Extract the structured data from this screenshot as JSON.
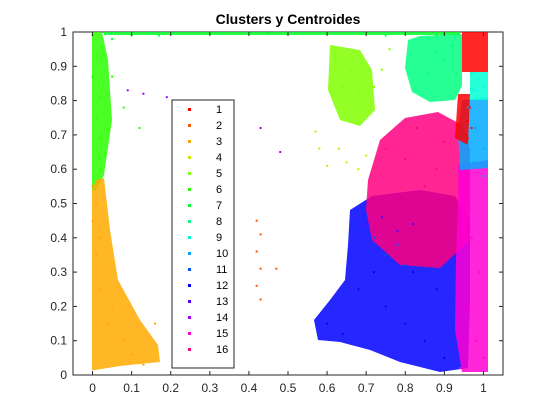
{
  "chart_data": {
    "type": "scatter",
    "title": "Clusters y Centroides",
    "xlabel": "",
    "ylabel": "",
    "xlim": [
      -0.05,
      1.05
    ],
    "ylim": [
      0,
      1
    ],
    "xticks": [
      "0",
      "0.1",
      "0.2",
      "0.3",
      "0.4",
      "0.5",
      "0.6",
      "0.7",
      "0.8",
      "0.9",
      "1"
    ],
    "yticks": [
      "0",
      "0.1",
      "0.2",
      "0.3",
      "0.4",
      "0.5",
      "0.6",
      "0.7",
      "0.8",
      "0.9",
      "1"
    ],
    "legend_position": "inside-left",
    "series": [
      {
        "name": "1",
        "color": "#ff0000",
        "points": [
          [
            0.955,
            0.7
          ],
          [
            0.96,
            0.74
          ],
          [
            0.965,
            0.78
          ],
          [
            0.97,
            0.72
          ],
          [
            0.96,
            0.69
          ]
        ]
      },
      {
        "name": "2",
        "color": "#ff5500",
        "points": [
          [
            0.42,
            0.45
          ],
          [
            0.43,
            0.41
          ],
          [
            0.42,
            0.36
          ],
          [
            0.43,
            0.31
          ],
          [
            0.42,
            0.26
          ],
          [
            0.43,
            0.22
          ],
          [
            0.47,
            0.31
          ]
        ]
      },
      {
        "name": "3",
        "color": "#ffaa00",
        "points": [
          [
            0.0,
            0.55
          ],
          [
            0.01,
            0.5
          ],
          [
            0.0,
            0.45
          ],
          [
            0.02,
            0.4
          ],
          [
            0.01,
            0.35
          ],
          [
            0.03,
            0.3
          ],
          [
            0.02,
            0.25
          ],
          [
            0.05,
            0.2
          ],
          [
            0.04,
            0.15
          ],
          [
            0.08,
            0.1
          ],
          [
            0.1,
            0.06
          ],
          [
            0.13,
            0.03
          ],
          [
            0.16,
            0.15
          ]
        ]
      },
      {
        "name": "4",
        "color": "#d2e600",
        "points": [
          [
            0.57,
            0.71
          ],
          [
            0.58,
            0.66
          ],
          [
            0.6,
            0.61
          ],
          [
            0.63,
            0.66
          ],
          [
            0.65,
            0.62
          ],
          [
            0.68,
            0.6
          ],
          [
            0.7,
            0.64
          ]
        ]
      },
      {
        "name": "5",
        "color": "#80ff00",
        "points": [
          [
            0.62,
            0.93
          ],
          [
            0.66,
            0.89
          ],
          [
            0.64,
            0.84
          ],
          [
            0.68,
            0.82
          ],
          [
            0.7,
            0.79
          ],
          [
            0.72,
            0.84
          ],
          [
            0.74,
            0.89
          ],
          [
            0.76,
            0.95
          ]
        ]
      },
      {
        "name": "6",
        "color": "#2aff00",
        "points": [
          [
            0.0,
            0.99
          ],
          [
            0.01,
            0.93
          ],
          [
            0.0,
            0.87
          ],
          [
            0.02,
            0.81
          ],
          [
            0.01,
            0.75
          ],
          [
            0.02,
            0.69
          ],
          [
            0.03,
            0.64
          ],
          [
            0.05,
            0.87
          ],
          [
            0.08,
            0.78
          ],
          [
            0.12,
            0.72
          ]
        ]
      },
      {
        "name": "7",
        "color": "#00ff2a",
        "points": [
          [
            0.05,
            0.98
          ],
          [
            0.1,
            0.99
          ],
          [
            0.17,
            0.99
          ],
          [
            0.3,
            0.995
          ],
          [
            0.45,
            0.995
          ],
          [
            0.6,
            0.995
          ],
          [
            0.75,
            0.99
          ],
          [
            0.88,
            0.99
          ]
        ]
      },
      {
        "name": "8",
        "color": "#00ff80",
        "points": [
          [
            0.86,
            0.98
          ],
          [
            0.88,
            0.94
          ],
          [
            0.9,
            0.92
          ],
          [
            0.92,
            0.96
          ],
          [
            0.86,
            0.88
          ],
          [
            0.89,
            0.86
          ],
          [
            0.93,
            0.88
          ]
        ]
      },
      {
        "name": "9",
        "color": "#00ffd4",
        "points": [
          [
            0.97,
            0.88
          ],
          [
            0.985,
            0.86
          ],
          [
            1.0,
            0.84
          ],
          [
            0.975,
            0.83
          ]
        ]
      },
      {
        "name": "10",
        "color": "#00aaff",
        "points": [
          [
            0.96,
            0.78
          ],
          [
            0.98,
            0.72
          ],
          [
            1.0,
            0.66
          ],
          [
            0.975,
            0.62
          ],
          [
            1.0,
            0.58
          ]
        ]
      },
      {
        "name": "11",
        "color": "#0055ff",
        "points": [
          [
            0.72,
            0.4
          ],
          [
            0.75,
            0.35
          ],
          [
            0.78,
            0.38
          ],
          [
            0.8,
            0.32
          ]
        ]
      },
      {
        "name": "12",
        "color": "#0000ff",
        "points": [
          [
            0.6,
            0.15
          ],
          [
            0.64,
            0.12
          ],
          [
            0.68,
            0.25
          ],
          [
            0.72,
            0.3
          ],
          [
            0.75,
            0.2
          ],
          [
            0.8,
            0.15
          ],
          [
            0.82,
            0.3
          ],
          [
            0.85,
            0.1
          ],
          [
            0.88,
            0.25
          ],
          [
            0.9,
            0.05
          ]
        ]
      },
      {
        "name": "13",
        "color": "#5500ff",
        "points": [
          [
            0.7,
            0.44
          ],
          [
            0.74,
            0.46
          ],
          [
            0.78,
            0.42
          ],
          [
            0.82,
            0.44
          ]
        ]
      },
      {
        "name": "14",
        "color": "#aa00ff",
        "points": [
          [
            0.09,
            0.83
          ],
          [
            0.13,
            0.82
          ],
          [
            0.19,
            0.81
          ],
          [
            0.26,
            0.8
          ],
          [
            0.33,
            0.79
          ],
          [
            0.43,
            0.72
          ],
          [
            0.48,
            0.65
          ]
        ]
      },
      {
        "name": "15",
        "color": "#ff00d4",
        "points": [
          [
            0.95,
            0.5
          ],
          [
            0.97,
            0.4
          ],
          [
            0.99,
            0.3
          ],
          [
            0.96,
            0.2
          ],
          [
            0.98,
            0.1
          ],
          [
            1.0,
            0.05
          ],
          [
            0.94,
            0.02
          ]
        ]
      },
      {
        "name": "16",
        "color": "#ff0080",
        "points": [
          [
            0.75,
            0.66
          ],
          [
            0.8,
            0.63
          ],
          [
            0.85,
            0.55
          ],
          [
            0.88,
            0.6
          ],
          [
            0.92,
            0.5
          ],
          [
            0.78,
            0.45
          ],
          [
            0.83,
            0.72
          ],
          [
            0.9,
            0.68
          ]
        ]
      }
    ]
  }
}
